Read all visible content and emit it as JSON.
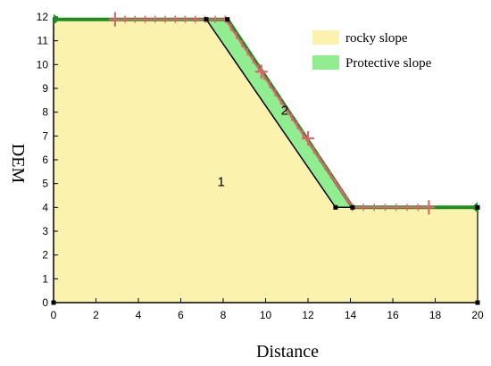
{
  "diagram": {
    "x_label": "Distance",
    "y_label": "DEM",
    "x_range": [
      0,
      20
    ],
    "y_range": [
      0,
      12
    ],
    "x_ticks": [
      0,
      2,
      4,
      6,
      8,
      10,
      12,
      14,
      16,
      18,
      20
    ],
    "y_ticks": [
      0,
      1,
      2,
      3,
      4,
      5,
      6,
      7,
      8,
      9,
      10,
      11,
      12
    ],
    "rocky_profile": [
      [
        0,
        0
      ],
      [
        0,
        11.9
      ],
      [
        8.2,
        11.9
      ],
      [
        14.1,
        4
      ],
      [
        20,
        4
      ],
      [
        20,
        0
      ]
    ],
    "rocky_outline": [
      [
        7.2,
        11.9
      ],
      [
        13.3,
        4
      ]
    ],
    "protective_polygon": [
      [
        7.2,
        11.9
      ],
      [
        8.2,
        11.9
      ],
      [
        14.1,
        4
      ],
      [
        13.3,
        4
      ]
    ],
    "surface_profile": [
      [
        0,
        11.9
      ],
      [
        8.2,
        11.9
      ],
      [
        14.1,
        4
      ],
      [
        20,
        4
      ]
    ],
    "sample_profile": [
      [
        2.9,
        11.9
      ],
      [
        8.1,
        11.9
      ],
      [
        14.1,
        4
      ],
      [
        17.7,
        4
      ]
    ],
    "big_cross_points": [
      [
        2.9,
        11.9
      ],
      [
        9.8,
        9.7
      ],
      [
        12.0,
        6.9
      ],
      [
        17.7,
        4
      ]
    ],
    "vertex_markers": [
      [
        0,
        0
      ],
      [
        7.2,
        11.9
      ],
      [
        8.2,
        11.9
      ],
      [
        13.3,
        4
      ],
      [
        14.1,
        4
      ],
      [
        20,
        4
      ],
      [
        20,
        0
      ]
    ],
    "region_labels": [
      {
        "text": "1",
        "at": [
          7.9,
          4.9
        ]
      },
      {
        "text": "2",
        "at": [
          10.9,
          7.9
        ]
      }
    ],
    "legend": [
      {
        "label": "rocky slope",
        "color": "#fbf3ad"
      },
      {
        "label": "Protective slope",
        "color": "#90ee90"
      }
    ],
    "colors": {
      "rocky_fill": "#fbf3ad",
      "protective_fill": "#90ee90",
      "surface_line": "#1e8c1e",
      "sample_line": "#e06470",
      "outline": "#000000"
    }
  }
}
